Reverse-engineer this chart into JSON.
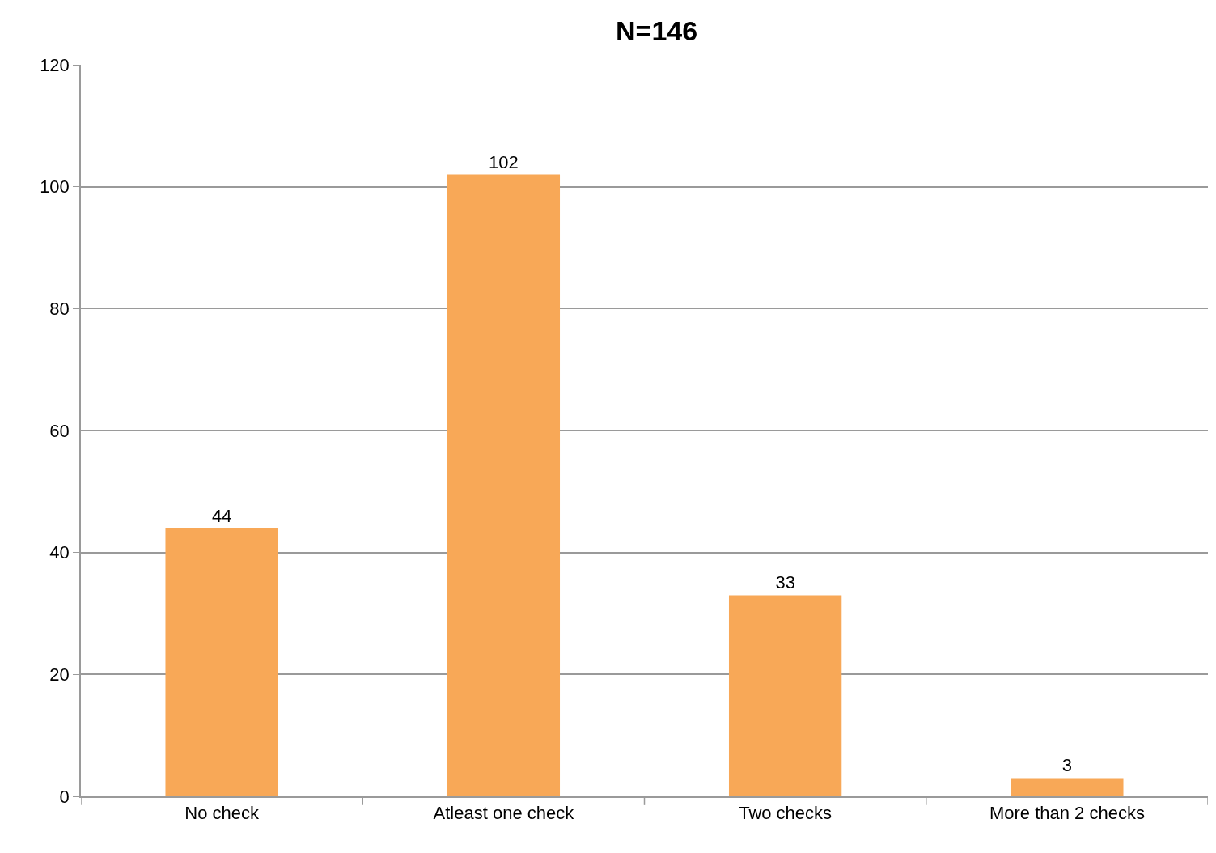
{
  "chart_data": {
    "type": "bar",
    "title": "N=146",
    "categories": [
      "No check",
      "Atleast one check",
      "Two checks",
      "More than 2 checks"
    ],
    "values": [
      44,
      102,
      33,
      3
    ],
    "color": "#f8a857",
    "ylim": [
      0,
      120
    ],
    "yticks": [
      0,
      20,
      40,
      60,
      80,
      100,
      120
    ],
    "grid": "y",
    "data_labels": true
  }
}
